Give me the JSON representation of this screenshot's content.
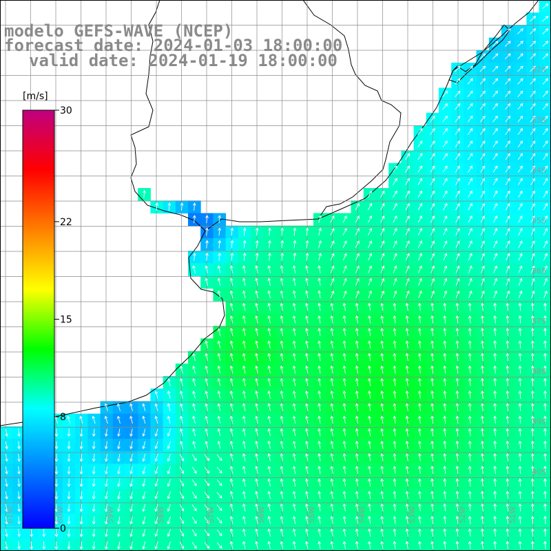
{
  "header": {
    "line1": "modelo GEFS-WAVE (NCEP)",
    "line2": "forecast date: 2024-01-03 18:00:00",
    "line3": "valid date: 2024-01-19 18:00:00"
  },
  "colorbar": {
    "unit": "[m/s]",
    "ticks": [
      {
        "value": 30,
        "label": "30"
      },
      {
        "value": 22,
        "label": "22"
      },
      {
        "value": 15,
        "label": "15"
      },
      {
        "value": 8,
        "label": "8"
      },
      {
        "value": 0,
        "label": "0"
      }
    ],
    "colors": [
      "#0000ff",
      "#0080ff",
      "#00ffff",
      "#00ff00",
      "#ffff00",
      "#ff8000",
      "#ff0000",
      "#c00080"
    ]
  },
  "grid": {
    "lon_labels": [
      "61W",
      "60W",
      "59W",
      "58W",
      "57W",
      "56W",
      "55W",
      "54W",
      "53W",
      "52W",
      "51W"
    ],
    "lat_labels": [
      "32S",
      "33S",
      "34S",
      "35S",
      "36S",
      "37S",
      "38S",
      "39S",
      "40S"
    ]
  },
  "colors": {
    "land": "#ffffff",
    "coast": "#000000",
    "grid": "#7f7f7f",
    "arrows": "#ffffff",
    "text": "#8a8a8a"
  }
}
